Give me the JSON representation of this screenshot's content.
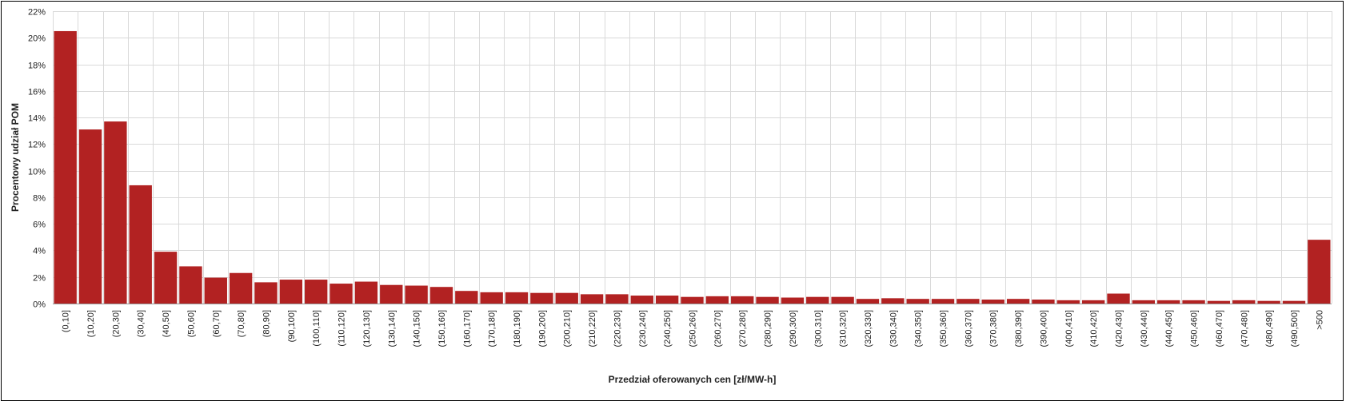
{
  "chart_data": {
    "type": "bar",
    "title": "",
    "xlabel": "Przedział oferowanych cen [zł/MW-h]",
    "ylabel": "Procentowy udział POM",
    "ylim": [
      0,
      22
    ],
    "y_ticks": [
      0,
      2,
      4,
      6,
      8,
      10,
      12,
      14,
      16,
      18,
      20,
      22
    ],
    "y_tick_format": "{v}%",
    "grid": true,
    "legend": "none",
    "bar_color": "#b22222",
    "grid_color": "#d9d9d9",
    "categories": [
      "(0,10]",
      "(10,20]",
      "(20,30]",
      "(30,40]",
      "(40,50]",
      "(50,60]",
      "(60,70]",
      "(70,80]",
      "(80,90]",
      "(90,100]",
      "(100,110]",
      "(110,120]",
      "(120,130]",
      "(130,140]",
      "(140,150]",
      "(150,160]",
      "(160,170]",
      "(170,180]",
      "(180,190]",
      "(190,200]",
      "(200,210]",
      "(210,220]",
      "(220,230]",
      "(230,240]",
      "(240,250]",
      "(250,260]",
      "(260,270]",
      "(270,280]",
      "(280,290]",
      "(290,300]",
      "(300,310]",
      "(310,320]",
      "(320,330]",
      "(330,340]",
      "(340,350]",
      "(350,360]",
      "(360,370]",
      "(370,380]",
      "(380,390]",
      "(390,400]",
      "(400,410]",
      "(410,420]",
      "(420,430]",
      "(430,440]",
      "(440,450]",
      "(450,460]",
      "(460,470]",
      "(470,480]",
      "(480,490]",
      "(490,500]",
      ">500"
    ],
    "values": [
      20.5,
      13.1,
      13.7,
      8.9,
      3.9,
      2.8,
      1.95,
      2.3,
      1.6,
      1.8,
      1.8,
      1.5,
      1.65,
      1.4,
      1.35,
      1.25,
      0.95,
      0.85,
      0.85,
      0.8,
      0.8,
      0.7,
      0.7,
      0.6,
      0.6,
      0.5,
      0.55,
      0.55,
      0.5,
      0.45,
      0.5,
      0.5,
      0.35,
      0.4,
      0.35,
      0.35,
      0.35,
      0.3,
      0.35,
      0.3,
      0.25,
      0.25,
      0.75,
      0.25,
      0.25,
      0.25,
      0.2,
      0.25,
      0.2,
      0.2,
      4.8
    ]
  }
}
